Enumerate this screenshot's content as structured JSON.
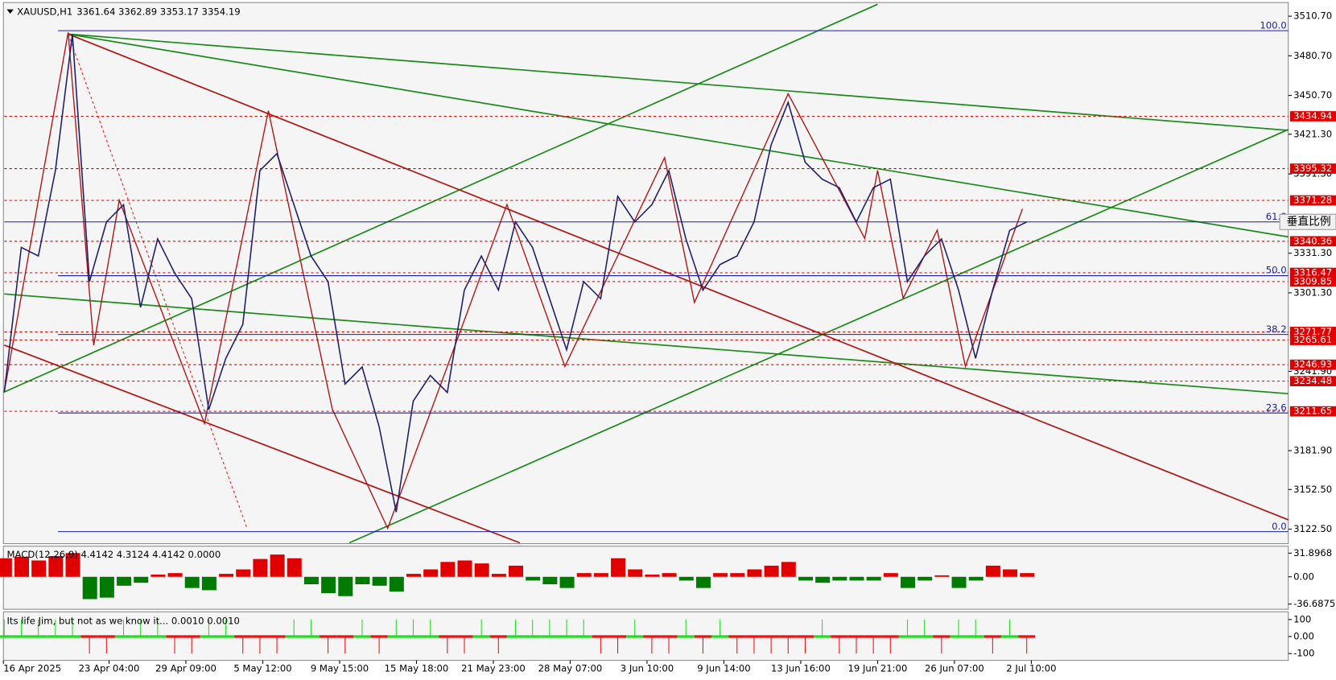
{
  "header": {
    "title": "XAUUSD,H1",
    "ohlc": "3361.64 3362.89 3353.17 3354.19"
  },
  "chart_data": [
    {
      "type": "line",
      "color": "#20206a",
      "ylim": [
        3111.5,
        3521.0
      ],
      "yticks": [
        {
          "value": 3510.7,
          "label": "3510.70"
        },
        {
          "value": 3480.7,
          "label": "3480.70"
        },
        {
          "value": 3450.7,
          "label": "3450.70"
        },
        {
          "value": 3421.3,
          "label": "3421.30"
        },
        {
          "value": 3391.3,
          "label": "3391.30"
        },
        {
          "value": 3331.3,
          "label": "3331.30"
        },
        {
          "value": 3301.3,
          "label": "3301.30"
        },
        {
          "value": 3241.9,
          "label": "3241.90"
        },
        {
          "value": 3181.9,
          "label": "3181.90"
        },
        {
          "value": 3152.5,
          "label": "3152.50"
        },
        {
          "value": 3122.5,
          "label": "3122.50"
        }
      ],
      "values": [
        3225.9,
        3335.7,
        3329.2,
        3393.8,
        3497.1,
        3309.8,
        3355.0,
        3368.0,
        3290.4,
        3342.1,
        3316.3,
        3296.9,
        3212.9,
        3251.7,
        3277.5,
        3393.8,
        3406.7,
        3368.0,
        3329.2,
        3309.8,
        3232.3,
        3245.2,
        3200.0,
        3135.4,
        3219.4,
        3238.8,
        3225.9,
        3303.4,
        3329.2,
        3303.4,
        3355.0,
        3335.7,
        3296.9,
        3258.2,
        3309.8,
        3296.9,
        3374.4,
        3355.0,
        3368.0,
        3393.8,
        3342.1,
        3303.4,
        3322.7,
        3329.2,
        3355.0,
        3413.2,
        3445.5,
        3400.2,
        3387.3,
        3380.9,
        3355.0,
        3380.9,
        3387.3,
        3309.8,
        3329.2,
        3342.1,
        3303.4,
        3251.7,
        3303.4,
        3348.6,
        3355.0
      ],
      "time_labels": [
        "16 Apr 2025",
        "23 Apr 04:00",
        "29 Apr 09:00",
        "5 May 12:00",
        "9 May 15:00",
        "15 May 18:00",
        "21 May 23:00",
        "28 May 07:00",
        "3 Jun 10:00",
        "9 Jun 14:00",
        "13 Jun 16:00",
        "19 Jun 21:00",
        "26 Jun 07:00",
        "2 Jul 10:00"
      ],
      "levels": [
        {
          "value": 3434.94,
          "label": "3434.94"
        },
        {
          "value": 3395.32,
          "label": "3395.32"
        },
        {
          "value": 3371.28,
          "label": "3371.28"
        },
        {
          "value": 3340.36,
          "label": "3340.36"
        },
        {
          "value": 3316.47,
          "label": "3316.47"
        },
        {
          "value": 3309.85,
          "label": "3309.85"
        },
        {
          "value": 3271.77,
          "label": "3271.77"
        },
        {
          "value": 3265.61,
          "label": "3265.61"
        },
        {
          "value": 3246.93,
          "label": "3246.93"
        },
        {
          "value": 3234.48,
          "label": "3234.48"
        },
        {
          "value": 3211.65,
          "label": "3211.65"
        }
      ],
      "level_color": "#e00000",
      "fib": [
        {
          "label": "100.0",
          "value": 3499.7
        },
        {
          "label": "61.8",
          "value": 3355.0
        },
        {
          "label": "50.0",
          "value": 3314.3
        },
        {
          "label": "38.2",
          "value": 3269.8
        },
        {
          "label": "23.6",
          "value": 3210.4
        },
        {
          "label": "0.0",
          "value": 3120.6
        }
      ],
      "fib_color": "#1c1caa",
      "scale_button": "垂直比例"
    },
    {
      "type": "histogram",
      "title": "MACD(12,26,9) 4.4142 4.3124 4.4142 0.0000",
      "ylim": [
        -43.7,
        41.2
      ],
      "yticks": [
        31.8968,
        {
          "value": 0,
          "label": "0.00"
        },
        -36.6875
      ],
      "positive_color": "#e00000",
      "negative_color": "#007a00",
      "values": [
        25,
        27,
        22,
        28,
        32,
        -30,
        -28,
        -12,
        -8,
        3,
        5,
        -15,
        -18,
        4,
        10,
        24,
        30,
        25,
        -10,
        -22,
        -26,
        -10,
        -12,
        -20,
        4,
        10,
        20,
        22,
        18,
        4,
        15,
        -5,
        -10,
        -15,
        5,
        5,
        25,
        10,
        3,
        5,
        -5,
        -15,
        5,
        5,
        10,
        15,
        20,
        -5,
        -8,
        -5,
        -5,
        -5,
        5,
        -15,
        -5,
        2,
        -15,
        -5,
        15,
        10,
        5
      ]
    },
    {
      "type": "state",
      "title": "Its life Jim, but not as we know it... 0.0010 0.0010",
      "ylim": [
        -140,
        145
      ],
      "yticks": [
        100,
        {
          "value": 0,
          "label": "0.00"
        },
        -100
      ],
      "positive_color": "#22dd22",
      "negative_color": "#ee1111",
      "values": [
        100,
        100,
        100,
        100,
        100,
        -100,
        -100,
        100,
        100,
        100,
        -100,
        -100,
        100,
        100,
        -100,
        -100,
        -100,
        100,
        100,
        -100,
        -100,
        100,
        -100,
        100,
        100,
        100,
        -100,
        -100,
        100,
        -100,
        100,
        100,
        100,
        100,
        100,
        -100,
        -100,
        100,
        -100,
        -100,
        100,
        -100,
        100,
        -100,
        -100,
        -100,
        -100,
        -100,
        100,
        -100,
        -100,
        -100,
        -100,
        100,
        100,
        -100,
        100,
        100,
        -100,
        100,
        -100
      ]
    }
  ]
}
